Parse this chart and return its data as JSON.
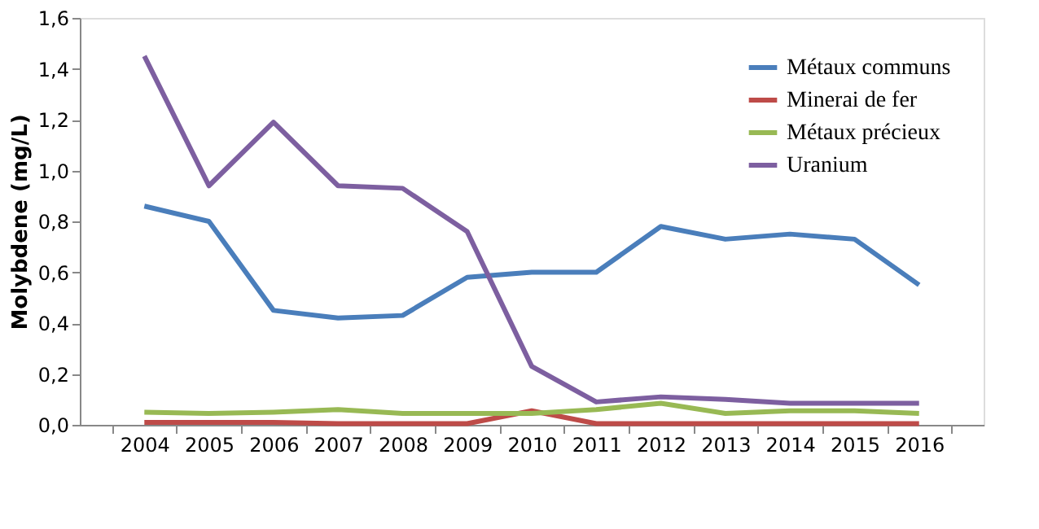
{
  "chart_data": {
    "type": "line",
    "ylabel": "Molybdene (mg/L)",
    "categories": [
      "2004",
      "2005",
      "2006",
      "2007",
      "2008",
      "2009",
      "2010",
      "2011",
      "2012",
      "2013",
      "2014",
      "2015",
      "2016"
    ],
    "series": [
      {
        "name": "Métaux communs",
        "color": "#4a7ebb",
        "values": [
          0.86,
          0.8,
          0.45,
          0.42,
          0.43,
          0.58,
          0.6,
          0.6,
          0.78,
          0.73,
          0.75,
          0.73,
          0.55
        ]
      },
      {
        "name": "Minerai de fer",
        "color": "#be4b48",
        "values": [
          0.01,
          0.01,
          0.01,
          0.005,
          0.005,
          0.005,
          0.055,
          0.005,
          0.005,
          0.005,
          0.005,
          0.005,
          0.005
        ]
      },
      {
        "name": "Métaux précieux",
        "color": "#98b954",
        "values": [
          0.05,
          0.045,
          0.05,
          0.06,
          0.045,
          0.045,
          0.045,
          0.06,
          0.085,
          0.045,
          0.055,
          0.055,
          0.045
        ]
      },
      {
        "name": "Uranium",
        "color": "#7d5fa0",
        "values": [
          1.45,
          0.94,
          1.19,
          0.94,
          0.93,
          0.76,
          0.23,
          0.09,
          0.11,
          0.1,
          0.085,
          0.085,
          0.085
        ]
      }
    ],
    "ylim": [
      0,
      1.6
    ],
    "yticks": [
      {
        "value": 0,
        "label": "0,0"
      },
      {
        "value": 0.2,
        "label": "0,2"
      },
      {
        "value": 0.4,
        "label": "0,4"
      },
      {
        "value": 0.6,
        "label": "0,6"
      },
      {
        "value": 0.8,
        "label": "0,8"
      },
      {
        "value": 1.0,
        "label": "1,0"
      },
      {
        "value": 1.2,
        "label": "1,2"
      },
      {
        "value": 1.4,
        "label": "1,4"
      },
      {
        "value": 1.6,
        "label": "1,6"
      }
    ],
    "grid": false,
    "legend": "top right",
    "marker": "none",
    "line_style": "solid"
  }
}
